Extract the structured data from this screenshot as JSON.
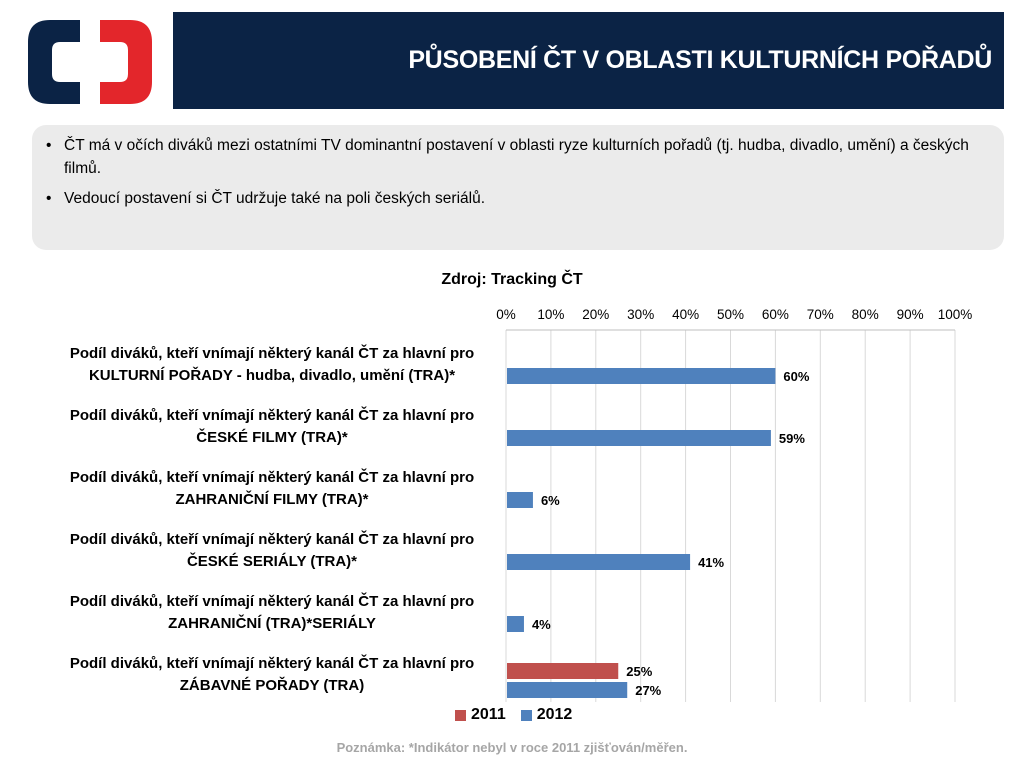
{
  "header": {
    "title": "PŮSOBENÍ ČT V OBLASTI KULTURNÍCH POŘADŮ"
  },
  "bullets": [
    "ČT má v očích diváků mezi ostatními TV dominantní postavení v oblasti ryze kulturních pořadů (tj. hudba, divadlo, umění) a českých filmů.",
    "Vedoucí postavení si ČT udržuje také na poli českých seriálů."
  ],
  "source": "Zdroj: Tracking ČT",
  "note": "Poznámka: *Indikátor nebyl v roce 2011 zjišťován/měřen.",
  "chart_data": {
    "type": "bar",
    "orientation": "horizontal",
    "xlim": [
      0,
      100
    ],
    "ticks": [
      "0%",
      "10%",
      "20%",
      "30%",
      "40%",
      "50%",
      "60%",
      "70%",
      "80%",
      "90%",
      "100%"
    ],
    "grid": true,
    "legend_position": "bottom",
    "categories": [
      [
        "Podíl diváků, kteří vnímají některý kanál ČT za hlavní pro",
        "KULTURNÍ POŘADY - hudba, divadlo, umění (TRA)*"
      ],
      [
        "Podíl diváků, kteří vnímají některý kanál ČT za hlavní pro",
        "ČESKÉ FILMY (TRA)*"
      ],
      [
        "Podíl diváků, kteří vnímají některý kanál ČT za hlavní pro",
        "ZAHRANIČNÍ FILMY (TRA)*"
      ],
      [
        "Podíl diváků, kteří vnímají některý kanál ČT za hlavní pro",
        "ČESKÉ SERIÁLY (TRA)*"
      ],
      [
        "Podíl diváků, kteří vnímají některý kanál ČT za hlavní pro",
        "ZAHRANIČNÍ (TRA)*SERIÁLY"
      ],
      [
        "Podíl diváků, kteří vnímají některý kanál ČT za hlavní pro",
        "ZÁBAVNÉ POŘADY (TRA)"
      ]
    ],
    "series": [
      {
        "name": "2011",
        "color": "#c0504d",
        "values": [
          null,
          null,
          null,
          null,
          null,
          25
        ],
        "labels": [
          "",
          "",
          "",
          "",
          "",
          "25%"
        ]
      },
      {
        "name": "2012",
        "color": "#4f81bd",
        "values": [
          60,
          59,
          6,
          41,
          4,
          27
        ],
        "labels": [
          "60%",
          "59%",
          "6%",
          "41%",
          "4%",
          "27%"
        ]
      }
    ]
  },
  "colors": {
    "title_bg": "#0b2345",
    "logo_blue": "#0b2345",
    "logo_red": "#e3262b",
    "box_bg": "#ebebeb"
  }
}
